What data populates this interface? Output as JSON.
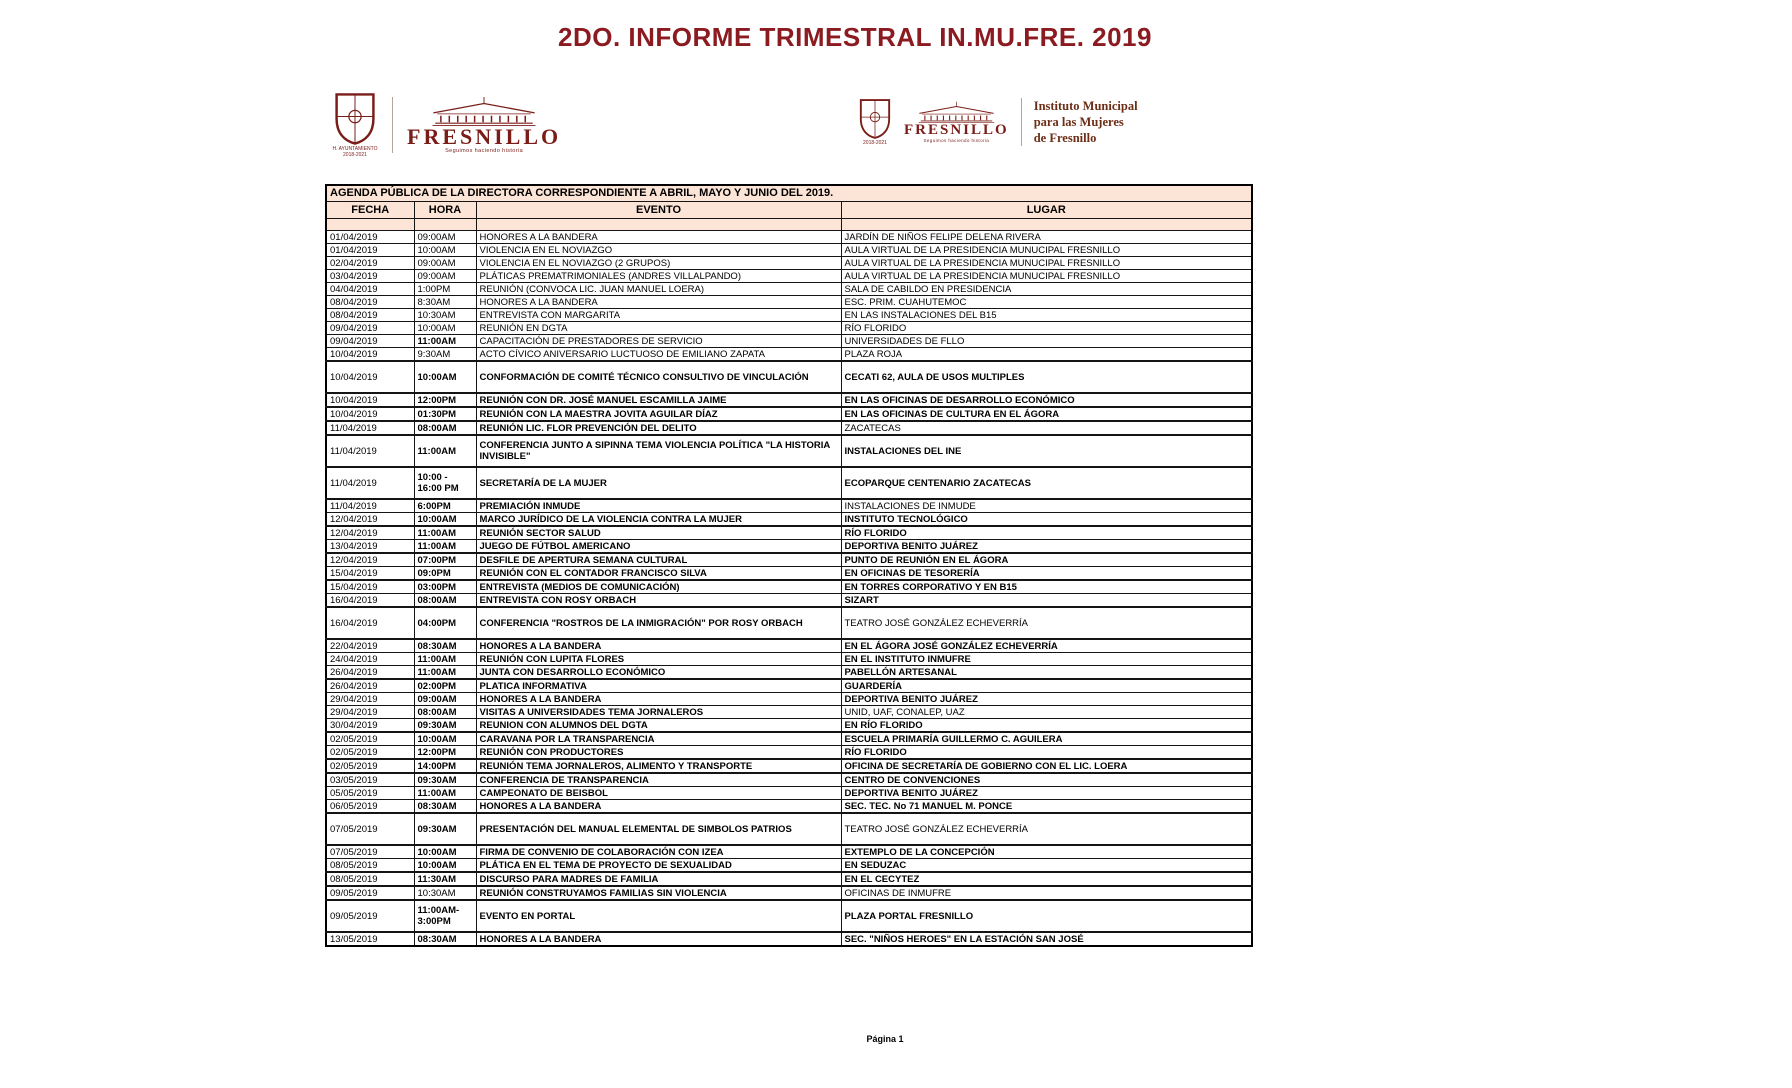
{
  "page": {
    "title": "2DO. INFORME TRIMESTRAL IN.MU.FRE. 2019",
    "footer": "Página 1"
  },
  "colors": {
    "title_maroon": "#8B1B20",
    "logo_maroon": "#7A1D18",
    "institute_brown": "#6E2D16",
    "header_bg": "#FCE4D6",
    "border": "#141414"
  },
  "logos": {
    "left": {
      "seal_caption": "H. AYUNTAMIENTO",
      "seal_years": "2018-2021",
      "brand": "FRESNILLO",
      "tagline": "Seguimos haciendo historia"
    },
    "right": {
      "seal_years": "2018-2021",
      "brand": "FRESNILLO",
      "tagline": "Seguimos haciendo historia",
      "institute1": "Instituto Municipal",
      "institute2": "para las Mujeres",
      "institute3": "de Fresnillo"
    }
  },
  "table": {
    "caption": "AGENDA PÚBLICA DE LA DIRECTORA CORRESPONDIENTE A ABRIL, MAYO Y JUNIO DEL 2019.",
    "columns": [
      "FECHA",
      "HORA",
      "EVENTO",
      "LUGAR"
    ],
    "rows": [
      {
        "f": "01/04/2019",
        "h": "09:00AM",
        "e": "HONORES A LA BANDERA",
        "l": "JARDÍN DE NIÑOS FELIPE DELENA RIVERA"
      },
      {
        "f": "01/04/2019",
        "h": "10:00AM",
        "e": "VIOLENCIA EN EL NOVIAZGO",
        "l": "AULA VIRTUAL DE LA PRESIDENCIA MUNUCIPAL FRESNILLO"
      },
      {
        "f": "02/04/2019",
        "h": "09:00AM",
        "e": "VIOLENCIA EN EL NOVIAZGO (2 GRUPOS)",
        "l": "AULA VIRTUAL DE LA PRESIDENCIA MUNUCIPAL FRESNILLO"
      },
      {
        "f": "03/04/2019",
        "h": "09:00AM",
        "e": "PLÁTICAS PREMATRIMONIALES (ANDRES VILLALPANDO)",
        "l": "AULA VIRTUAL DE LA PRESIDENCIA MUNUCIPAL FRESNILLO"
      },
      {
        "f": "04/04/2019",
        "h": "1:00PM",
        "e": "REUNIÓN (CONVOCA LIC. JUAN MANUEL LOERA)",
        "l": "SALA DE CABILDO EN PRESIDENCIA"
      },
      {
        "f": "08/04/2019",
        "h": "8:30AM",
        "e": "HONORES A LA BANDERA",
        "l": "ESC. PRIM. CUAHUTEMOC"
      },
      {
        "f": "08/04/2019",
        "h": "10:30AM",
        "e": "ENTREVISTA CON MARGARITA",
        "l": "EN LAS INSTALACIONES DEL B15"
      },
      {
        "f": "09/04/2019",
        "h": "10:00AM",
        "e": "REUNIÓN EN DGTA",
        "l": "RÍO FLORIDO"
      },
      {
        "f": "09/04/2019",
        "h": "11:00AM",
        "e": "CAPACITACIÓN DE PRESTADORES DE SERVICIO",
        "l": "UNIVERSIDADES DE FLLO",
        "hb": 1
      },
      {
        "f": "10/04/2019",
        "h": "9:30AM",
        "e": "ACTO CÍVICO ANIVERSARIO LUCTUOSO DE EMILIANO ZAPATA",
        "l": "PLAZA ROJA"
      },
      {
        "f": "10/04/2019",
        "h": "10:00AM",
        "e": "CONFORMACIÓN DE COMITÉ TÉCNICO CONSULTIVO DE VINCULACIÓN",
        "l": "CECATI 62, AULA DE USOS MULTIPLES",
        "hb": 1,
        "eb": 1,
        "lb": 1,
        "tall": 1
      },
      {
        "f": "10/04/2019",
        "h": "12:00PM",
        "e": "REUNIÓN CON DR. JOSÉ MANUEL ESCAMILLA JAIME",
        "l": "EN LAS OFICINAS DE DESARROLLO ECONÓMICO",
        "hb": 1,
        "eb": 1,
        "lb": 1,
        "sep": 1
      },
      {
        "f": "10/04/2019",
        "h": "01:30PM",
        "e": "REUNIÓN CON LA MAESTRA JOVITA AGUILAR DÍAZ",
        "l": "EN LAS OFICINAS DE CULTURA EN EL ÁGORA",
        "hb": 1,
        "eb": 1,
        "lb": 1,
        "sep": 1
      },
      {
        "f": "11/04/2019",
        "h": "08:00AM",
        "e": "REUNIÓN LIC. FLOR PREVENCIÓN DEL DELITO",
        "l": "ZACATECAS",
        "hb": 1,
        "eb": 1,
        "sep": 1
      },
      {
        "f": "11/04/2019",
        "h": "11:00AM",
        "e": "CONFERENCIA JUNTO A SIPINNA TEMA VIOLENCIA POLÍTICA \"LA HISTORIA INVISIBLE\"",
        "l": "INSTALACIONES DEL INE",
        "hb": 1,
        "eb": 1,
        "lb": 1,
        "tall": 1
      },
      {
        "f": "11/04/2019",
        "h": "10:00 - 16:00 PM",
        "e": "SECRETARÍA DE LA MUJER",
        "l": "ECOPARQUE CENTENARIO ZACATECAS",
        "hb": 1,
        "eb": 1,
        "lb": 1,
        "tall": 1
      },
      {
        "f": "11/04/2019",
        "h": "6:00PM",
        "e": "PREMIACIÓN INMUDE",
        "l": "INSTALACIONES DE INMUDE",
        "hb": 1,
        "eb": 1,
        "sep": 1
      },
      {
        "f": "12/04/2019",
        "h": "10:00AM",
        "e": "MARCO JURÍDICO DE LA VIOLENCIA CONTRA LA MUJER",
        "l": "INSTITUTO TECNOLÓGICO",
        "hb": 1,
        "eb": 1,
        "lb": 1
      },
      {
        "f": "12/04/2019",
        "h": "11:00AM",
        "e": "REUNIÓN SECTOR SALUD",
        "l": "RÍO FLORIDO",
        "hb": 1,
        "eb": 1,
        "lb": 1,
        "sep": 1
      },
      {
        "f": "13/04/2019",
        "h": "11:00AM",
        "e": "JUEGO DE FÚTBOL AMERICANO",
        "l": "DEPORTIVA BENITO JUÁREZ",
        "hb": 1,
        "eb": 1,
        "lb": 1
      },
      {
        "f": "12/04/2019",
        "h": "07:00PM",
        "e": "DESFILE DE APERTURA SEMANA CULTURAL",
        "l": "PUNTO DE REUNIÓN EN EL ÁGORA",
        "hb": 1,
        "eb": 1,
        "lb": 1,
        "sep": 1
      },
      {
        "f": "15/04/2019",
        "h": "09:0PM",
        "e": "REUNIÓN CON EL CONTADOR FRANCISCO SILVA",
        "l": "EN OFICINAS DE TESORERÍA",
        "hb": 1,
        "eb": 1,
        "lb": 1
      },
      {
        "f": "15/04/2019",
        "h": "03:00PM",
        "e": "ENTREVISTA (MEDIOS DE COMUNICACIÓN)",
        "l": "EN TORRES CORPORATIVO Y EN B15",
        "hb": 1,
        "eb": 1,
        "lb": 1,
        "sep": 1
      },
      {
        "f": "16/04/2019",
        "h": "08:00AM",
        "e": "ENTREVISTA CON ROSY ORBACH",
        "l": "SIZART",
        "hb": 1,
        "eb": 1,
        "lb": 1
      },
      {
        "f": "16/04/2019",
        "h": "04:00PM",
        "e": "CONFERENCIA \"ROSTROS DE LA INMIGRACIÓN\" POR ROSY ORBACH",
        "l": "TEATRO JOSÉ GONZÁLEZ ECHEVERRÍA",
        "hb": 1,
        "eb": 1,
        "tall": 1
      },
      {
        "f": "22/04/2019",
        "h": "08:30AM",
        "e": "HONORES A LA BANDERA",
        "l": "EN EL ÁGORA JOSÉ GONZÁLEZ ECHEVERRÍA",
        "hb": 1,
        "eb": 1,
        "lb": 1,
        "sep": 1
      },
      {
        "f": "24/04/2019",
        "h": "11:00AM",
        "e": "REUNIÓN CON LUPITA FLORES",
        "l": "EN EL INSTITUTO INMUFRE",
        "hb": 1,
        "eb": 1,
        "lb": 1
      },
      {
        "f": "26/04/2019",
        "h": "11:00AM",
        "e": "JUNTA CON DESARROLLO ECONÓMICO",
        "l": "PABELLÓN ARTESANAL",
        "hb": 1,
        "eb": 1,
        "lb": 1
      },
      {
        "f": "26/04/2019",
        "h": "02:00PM",
        "e": "PLATICA INFORMATIVA",
        "l": "GUARDERÍA",
        "hb": 1,
        "eb": 1,
        "lb": 1,
        "sep": 1
      },
      {
        "f": "29/04/2019",
        "h": "09:00AM",
        "e": "HONORES A LA BANDERA",
        "l": "DEPORTIVA BENITO JUÁREZ",
        "hb": 1,
        "eb": 1,
        "lb": 1
      },
      {
        "f": "29/04/2019",
        "h": "08:00AM",
        "e": "VISITAS A UNIVERSIDADES TEMA JORNALEROS",
        "l": "UNID, UAF, CONALEP, UAZ",
        "hb": 1,
        "eb": 1
      },
      {
        "f": "30/04/2019",
        "h": "09:30AM",
        "e": "REUNION CON ALUMNOS DEL DGTA",
        "l": "EN RÍO FLORIDO",
        "hb": 1,
        "eb": 1,
        "lb": 1
      },
      {
        "f": "02/05/2019",
        "h": "10:00AM",
        "e": "CARAVANA POR LA TRANSPARENCIA",
        "l": "ESCUELA PRIMARÍA GUILLERMO C. AGUILERA",
        "hb": 1,
        "eb": 1,
        "lb": 1,
        "sep": 1
      },
      {
        "f": "02/05/2019",
        "h": "12:00PM",
        "e": "REUNIÓN CON PRODUCTORES",
        "l": "RÍO FLORIDO",
        "hb": 1,
        "eb": 1,
        "lb": 1
      },
      {
        "f": "02/05/2019",
        "h": "14:00PM",
        "e": "REUNIÓN TEMA JORNALEROS, ALIMENTO Y TRANSPORTE",
        "l": "OFICINA DE SECRETARÍA DE GOBIERNO CON EL LIC. LOERA",
        "hb": 1,
        "eb": 1,
        "lb": 1,
        "sep": 1
      },
      {
        "f": "03/05/2019",
        "h": "09:30AM",
        "e": "CONFERENCIA DE TRANSPARENCIA",
        "l": "CENTRO DE CONVENCIONES",
        "hb": 1,
        "eb": 1,
        "lb": 1,
        "sep": 1
      },
      {
        "f": "05/05/2019",
        "h": "11:00AM",
        "e": "CAMPEONATO DE BEISBOL",
        "l": "DEPORTIVA BENITO JUÁREZ",
        "hb": 1,
        "eb": 1,
        "lb": 1
      },
      {
        "f": "06/05/2019",
        "h": "08:30AM",
        "e": "HONORES A LA BANDERA",
        "l": "SEC. TEC. No 71 MANUEL M. PONCE",
        "hb": 1,
        "eb": 1,
        "lb": 1
      },
      {
        "f": "07/05/2019",
        "h": "09:30AM",
        "e": "PRESENTACIÓN DEL MANUAL ELEMENTAL DE SIMBOLOS PATRIOS",
        "l": "TEATRO JOSÉ GONZÁLEZ ECHEVERRÍA",
        "hb": 1,
        "eb": 1,
        "tall": 1
      },
      {
        "f": "07/05/2019",
        "h": "10:00AM",
        "e": "FIRMA DE CONVENIO DE COLABORACIÓN CON IZEA",
        "l": "EXTEMPLO DE LA CONCEPCIÓN",
        "hb": 1,
        "eb": 1,
        "lb": 1,
        "sep": 1
      },
      {
        "f": "08/05/2019",
        "h": "10:00AM",
        "e": "PLÁTICA EN EL TEMA DE PROYECTO DE SEXUALIDAD",
        "l": "EN SEDUZAC",
        "hb": 1,
        "eb": 1,
        "lb": 1
      },
      {
        "f": "08/05/2019",
        "h": "11:30AM",
        "e": "DISCURSO PARA MADRES DE FAMILIA",
        "l": "EN EL CECYTEZ",
        "hb": 1,
        "eb": 1,
        "lb": 1,
        "sep": 1
      },
      {
        "f": "09/05/2019",
        "h": "10:30AM",
        "e": "REUNIÓN CONSTRUYAMOS FAMILIAS SIN VIOLENCIA",
        "l": "OFICINAS DE INMUFRE",
        "eb": 1,
        "sep": 1
      },
      {
        "f": "09/05/2019",
        "h": "11:00AM-3:00PM",
        "e": "EVENTO EN PORTAL",
        "l": "PLAZA PORTAL FRESNILLO",
        "hb": 1,
        "eb": 1,
        "lb": 1,
        "tall": 1
      },
      {
        "f": "13/05/2019",
        "h": "08:30AM",
        "e": "HONORES A LA BANDERA",
        "l": "SEC. \"NIÑOS HEROES\" EN LA ESTACIÓN SAN JOSÉ",
        "hb": 1,
        "eb": 1,
        "lb": 1,
        "sep": 1
      }
    ]
  }
}
